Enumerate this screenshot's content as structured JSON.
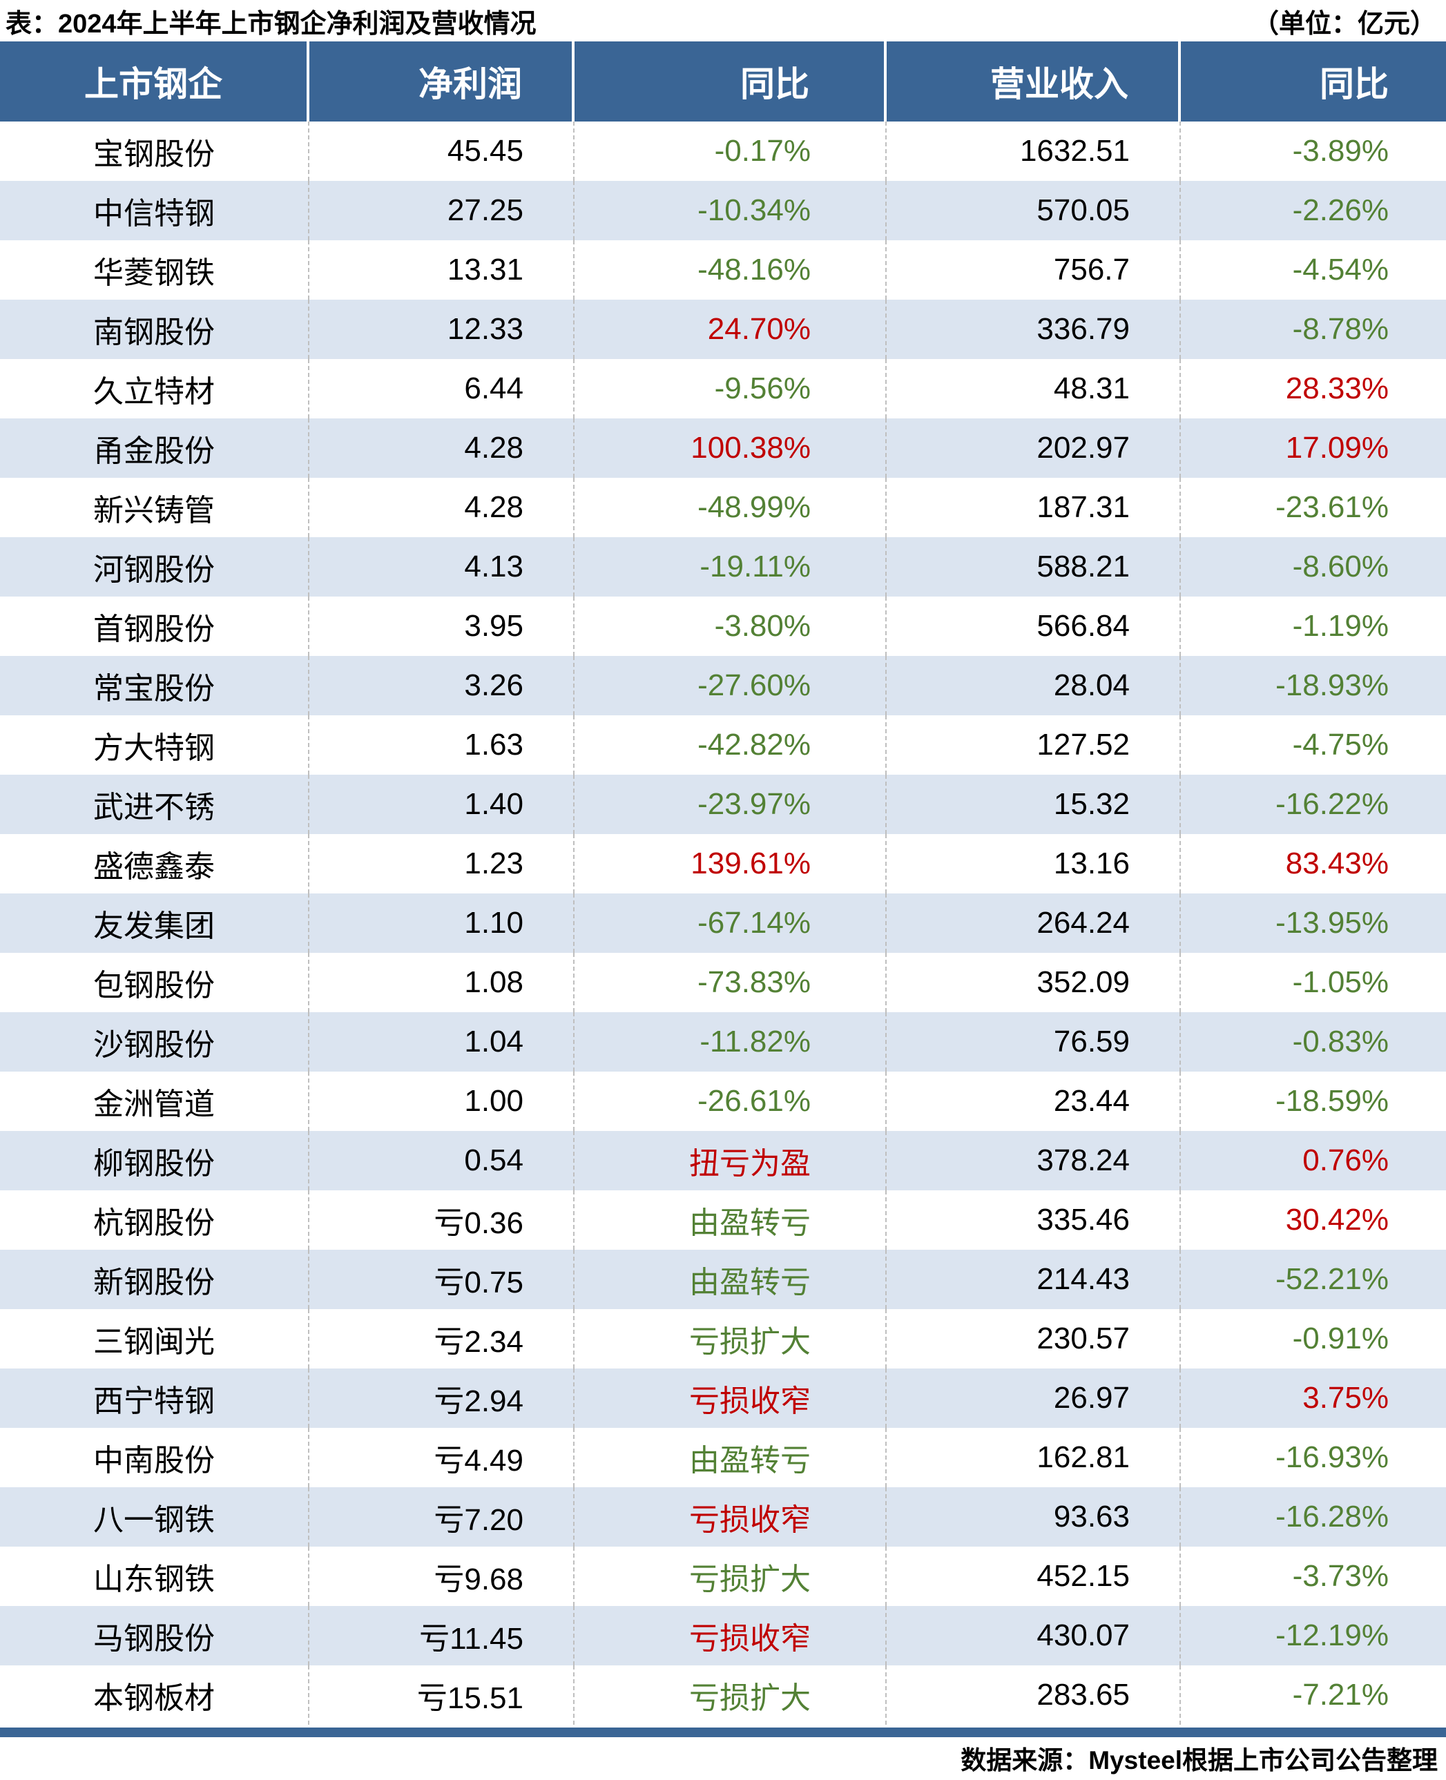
{
  "title": {
    "left": "表：2024年上半年上市钢企净利润及营收情况",
    "right": "（单位：亿元）"
  },
  "table": {
    "headers": [
      "上市钢企",
      "净利润",
      "同比",
      "营业收入",
      "同比"
    ],
    "rows": [
      {
        "company": "宝钢股份",
        "net_profit": "45.45",
        "net_profit_yoy": "-0.17%",
        "net_profit_yoy_color": "green",
        "revenue": "1632.51",
        "revenue_yoy": "-3.89%",
        "revenue_yoy_color": "green"
      },
      {
        "company": "中信特钢",
        "net_profit": "27.25",
        "net_profit_yoy": "-10.34%",
        "net_profit_yoy_color": "green",
        "revenue": "570.05",
        "revenue_yoy": "-2.26%",
        "revenue_yoy_color": "green"
      },
      {
        "company": "华菱钢铁",
        "net_profit": "13.31",
        "net_profit_yoy": "-48.16%",
        "net_profit_yoy_color": "green",
        "revenue": "756.7",
        "revenue_yoy": "-4.54%",
        "revenue_yoy_color": "green"
      },
      {
        "company": "南钢股份",
        "net_profit": "12.33",
        "net_profit_yoy": "24.70%",
        "net_profit_yoy_color": "red",
        "revenue": "336.79",
        "revenue_yoy": "-8.78%",
        "revenue_yoy_color": "green"
      },
      {
        "company": "久立特材",
        "net_profit": "6.44",
        "net_profit_yoy": "-9.56%",
        "net_profit_yoy_color": "green",
        "revenue": "48.31",
        "revenue_yoy": "28.33%",
        "revenue_yoy_color": "red"
      },
      {
        "company": "甬金股份",
        "net_profit": "4.28",
        "net_profit_yoy": "100.38%",
        "net_profit_yoy_color": "red",
        "revenue": "202.97",
        "revenue_yoy": "17.09%",
        "revenue_yoy_color": "red"
      },
      {
        "company": "新兴铸管",
        "net_profit": "4.28",
        "net_profit_yoy": "-48.99%",
        "net_profit_yoy_color": "green",
        "revenue": "187.31",
        "revenue_yoy": "-23.61%",
        "revenue_yoy_color": "green"
      },
      {
        "company": "河钢股份",
        "net_profit": "4.13",
        "net_profit_yoy": "-19.11%",
        "net_profit_yoy_color": "green",
        "revenue": "588.21",
        "revenue_yoy": "-8.60%",
        "revenue_yoy_color": "green"
      },
      {
        "company": "首钢股份",
        "net_profit": "3.95",
        "net_profit_yoy": "-3.80%",
        "net_profit_yoy_color": "green",
        "revenue": "566.84",
        "revenue_yoy": "-1.19%",
        "revenue_yoy_color": "green"
      },
      {
        "company": "常宝股份",
        "net_profit": "3.26",
        "net_profit_yoy": "-27.60%",
        "net_profit_yoy_color": "green",
        "revenue": "28.04",
        "revenue_yoy": "-18.93%",
        "revenue_yoy_color": "green"
      },
      {
        "company": "方大特钢",
        "net_profit": "1.63",
        "net_profit_yoy": "-42.82%",
        "net_profit_yoy_color": "green",
        "revenue": "127.52",
        "revenue_yoy": "-4.75%",
        "revenue_yoy_color": "green"
      },
      {
        "company": "武进不锈",
        "net_profit": "1.40",
        "net_profit_yoy": "-23.97%",
        "net_profit_yoy_color": "green",
        "revenue": "15.32",
        "revenue_yoy": "-16.22%",
        "revenue_yoy_color": "green"
      },
      {
        "company": "盛德鑫泰",
        "net_profit": "1.23",
        "net_profit_yoy": "139.61%",
        "net_profit_yoy_color": "red",
        "revenue": "13.16",
        "revenue_yoy": "83.43%",
        "revenue_yoy_color": "red"
      },
      {
        "company": "友发集团",
        "net_profit": "1.10",
        "net_profit_yoy": "-67.14%",
        "net_profit_yoy_color": "green",
        "revenue": "264.24",
        "revenue_yoy": "-13.95%",
        "revenue_yoy_color": "green"
      },
      {
        "company": "包钢股份",
        "net_profit": "1.08",
        "net_profit_yoy": "-73.83%",
        "net_profit_yoy_color": "green",
        "revenue": "352.09",
        "revenue_yoy": "-1.05%",
        "revenue_yoy_color": "green"
      },
      {
        "company": "沙钢股份",
        "net_profit": "1.04",
        "net_profit_yoy": "-11.82%",
        "net_profit_yoy_color": "green",
        "revenue": "76.59",
        "revenue_yoy": "-0.83%",
        "revenue_yoy_color": "green"
      },
      {
        "company": "金洲管道",
        "net_profit": "1.00",
        "net_profit_yoy": "-26.61%",
        "net_profit_yoy_color": "green",
        "revenue": "23.44",
        "revenue_yoy": "-18.59%",
        "revenue_yoy_color": "green"
      },
      {
        "company": "柳钢股份",
        "net_profit": "0.54",
        "net_profit_yoy": "扭亏为盈",
        "net_profit_yoy_color": "red",
        "revenue": "378.24",
        "revenue_yoy": "0.76%",
        "revenue_yoy_color": "red"
      },
      {
        "company": "杭钢股份",
        "net_profit": "亏0.36",
        "net_profit_yoy": "由盈转亏",
        "net_profit_yoy_color": "green",
        "revenue": "335.46",
        "revenue_yoy": "30.42%",
        "revenue_yoy_color": "red"
      },
      {
        "company": "新钢股份",
        "net_profit": "亏0.75",
        "net_profit_yoy": "由盈转亏",
        "net_profit_yoy_color": "green",
        "revenue": "214.43",
        "revenue_yoy": "-52.21%",
        "revenue_yoy_color": "green"
      },
      {
        "company": "三钢闽光",
        "net_profit": "亏2.34",
        "net_profit_yoy": "亏损扩大",
        "net_profit_yoy_color": "green",
        "revenue": "230.57",
        "revenue_yoy": "-0.91%",
        "revenue_yoy_color": "green"
      },
      {
        "company": "西宁特钢",
        "net_profit": "亏2.94",
        "net_profit_yoy": "亏损收窄",
        "net_profit_yoy_color": "red",
        "revenue": "26.97",
        "revenue_yoy": "3.75%",
        "revenue_yoy_color": "red"
      },
      {
        "company": "中南股份",
        "net_profit": "亏4.49",
        "net_profit_yoy": "由盈转亏",
        "net_profit_yoy_color": "green",
        "revenue": "162.81",
        "revenue_yoy": "-16.93%",
        "revenue_yoy_color": "green"
      },
      {
        "company": "八一钢铁",
        "net_profit": "亏7.20",
        "net_profit_yoy": "亏损收窄",
        "net_profit_yoy_color": "red",
        "revenue": "93.63",
        "revenue_yoy": "-16.28%",
        "revenue_yoy_color": "green"
      },
      {
        "company": "山东钢铁",
        "net_profit": "亏9.68",
        "net_profit_yoy": "亏损扩大",
        "net_profit_yoy_color": "green",
        "revenue": "452.15",
        "revenue_yoy": "-3.73%",
        "revenue_yoy_color": "green"
      },
      {
        "company": "马钢股份",
        "net_profit": "亏11.45",
        "net_profit_yoy": "亏损收窄",
        "net_profit_yoy_color": "red",
        "revenue": "430.07",
        "revenue_yoy": "-12.19%",
        "revenue_yoy_color": "green"
      },
      {
        "company": "本钢板材",
        "net_profit": "亏15.51",
        "net_profit_yoy": "亏损扩大",
        "net_profit_yoy_color": "green",
        "revenue": "283.65",
        "revenue_yoy": "-7.21%",
        "revenue_yoy_color": "green"
      }
    ]
  },
  "footer": {
    "source": "数据来源：Mysteel根据上市公司公告整理"
  },
  "colors": {
    "header_bg": "#3A6595",
    "footer_bar": "#3A6595",
    "row_alt_bg": "#DBE4F0",
    "positive_red": "#C00000",
    "negative_green": "#538135",
    "divider_dashed": "#BFBFBF",
    "header_text": "#FFFFFF",
    "body_text": "#000000"
  }
}
